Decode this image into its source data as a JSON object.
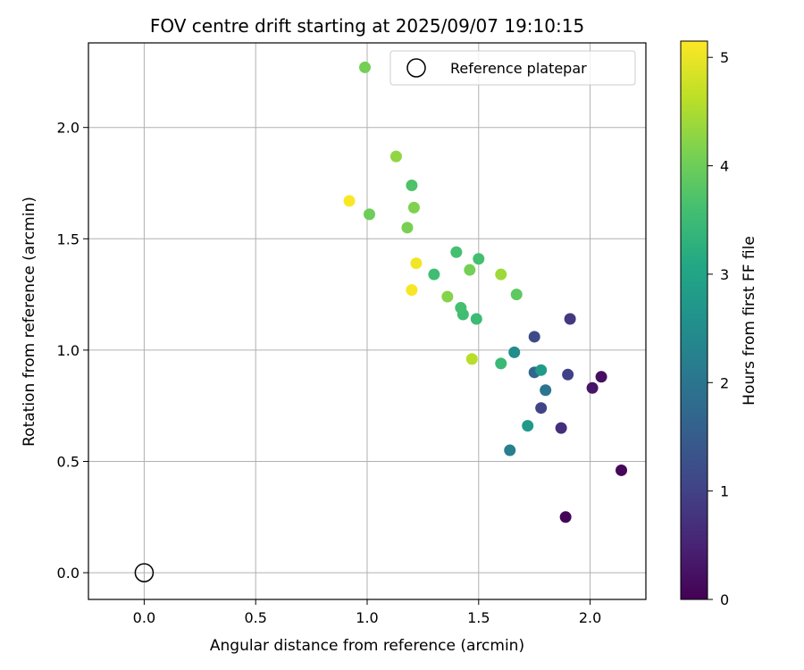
{
  "chart_data": {
    "type": "scatter",
    "title": "FOV centre drift starting at 2025/09/07 19:10:15",
    "xlabel": "Angular distance from reference (arcmin)",
    "ylabel": "Rotation from reference (arcmin)",
    "xlim": [
      -0.25,
      2.25
    ],
    "ylim": [
      -0.12,
      2.38
    ],
    "xticks": [
      0.0,
      0.5,
      1.0,
      1.5,
      2.0
    ],
    "xtick_labels": [
      "0.0",
      "0.5",
      "1.0",
      "1.5",
      "2.0"
    ],
    "yticks": [
      0.0,
      0.5,
      1.0,
      1.5,
      2.0
    ],
    "ytick_labels": [
      "0.0",
      "0.5",
      "1.0",
      "1.5",
      "2.0"
    ],
    "grid": true,
    "legend": {
      "placement": "top-right",
      "entries": [
        "Reference platepar"
      ]
    },
    "reference_point": {
      "x": 0.0,
      "y": 0.0
    },
    "colorbar": {
      "label": "Hours from first FF file",
      "colormap": "viridis",
      "range": [
        0,
        5.15
      ],
      "ticks": [
        0,
        1,
        2,
        3,
        4,
        5
      ],
      "tick_labels": [
        "0",
        "1",
        "2",
        "3",
        "4",
        "5"
      ]
    },
    "points": [
      {
        "x": 1.89,
        "y": 0.25,
        "hours": 0.05
      },
      {
        "x": 2.14,
        "y": 0.46,
        "hours": 0.1
      },
      {
        "x": 2.05,
        "y": 0.88,
        "hours": 0.2
      },
      {
        "x": 2.01,
        "y": 0.83,
        "hours": 0.3
      },
      {
        "x": 1.87,
        "y": 0.65,
        "hours": 0.7
      },
      {
        "x": 1.91,
        "y": 1.14,
        "hours": 0.85
      },
      {
        "x": 1.9,
        "y": 0.89,
        "hours": 1.0
      },
      {
        "x": 1.78,
        "y": 0.74,
        "hours": 1.05
      },
      {
        "x": 1.75,
        "y": 1.06,
        "hours": 1.15
      },
      {
        "x": 1.75,
        "y": 0.9,
        "hours": 1.7
      },
      {
        "x": 1.8,
        "y": 0.82,
        "hours": 2.0
      },
      {
        "x": 1.64,
        "y": 0.55,
        "hours": 2.2
      },
      {
        "x": 1.66,
        "y": 0.99,
        "hours": 2.5
      },
      {
        "x": 1.72,
        "y": 0.66,
        "hours": 2.75
      },
      {
        "x": 1.78,
        "y": 0.91,
        "hours": 2.8
      },
      {
        "x": 1.6,
        "y": 0.94,
        "hours": 3.45
      },
      {
        "x": 1.49,
        "y": 1.14,
        "hours": 3.5
      },
      {
        "x": 1.43,
        "y": 1.16,
        "hours": 3.55
      },
      {
        "x": 1.42,
        "y": 1.19,
        "hours": 3.6
      },
      {
        "x": 1.3,
        "y": 1.34,
        "hours": 3.55
      },
      {
        "x": 1.4,
        "y": 1.44,
        "hours": 3.6
      },
      {
        "x": 1.5,
        "y": 1.41,
        "hours": 3.6
      },
      {
        "x": 1.2,
        "y": 1.74,
        "hours": 3.7
      },
      {
        "x": 1.67,
        "y": 1.25,
        "hours": 3.85
      },
      {
        "x": 1.46,
        "y": 1.36,
        "hours": 4.05
      },
      {
        "x": 1.21,
        "y": 1.64,
        "hours": 4.15
      },
      {
        "x": 1.18,
        "y": 1.55,
        "hours": 4.1
      },
      {
        "x": 1.36,
        "y": 1.24,
        "hours": 4.2
      },
      {
        "x": 1.01,
        "y": 1.61,
        "hours": 4.0
      },
      {
        "x": 0.99,
        "y": 2.27,
        "hours": 4.05
      },
      {
        "x": 1.13,
        "y": 1.87,
        "hours": 4.3
      },
      {
        "x": 1.6,
        "y": 1.34,
        "hours": 4.4
      },
      {
        "x": 1.47,
        "y": 0.96,
        "hours": 4.6
      },
      {
        "x": 1.22,
        "y": 1.39,
        "hours": 5.05
      },
      {
        "x": 1.2,
        "y": 1.27,
        "hours": 5.1
      },
      {
        "x": 0.92,
        "y": 1.67,
        "hours": 5.12
      }
    ]
  }
}
